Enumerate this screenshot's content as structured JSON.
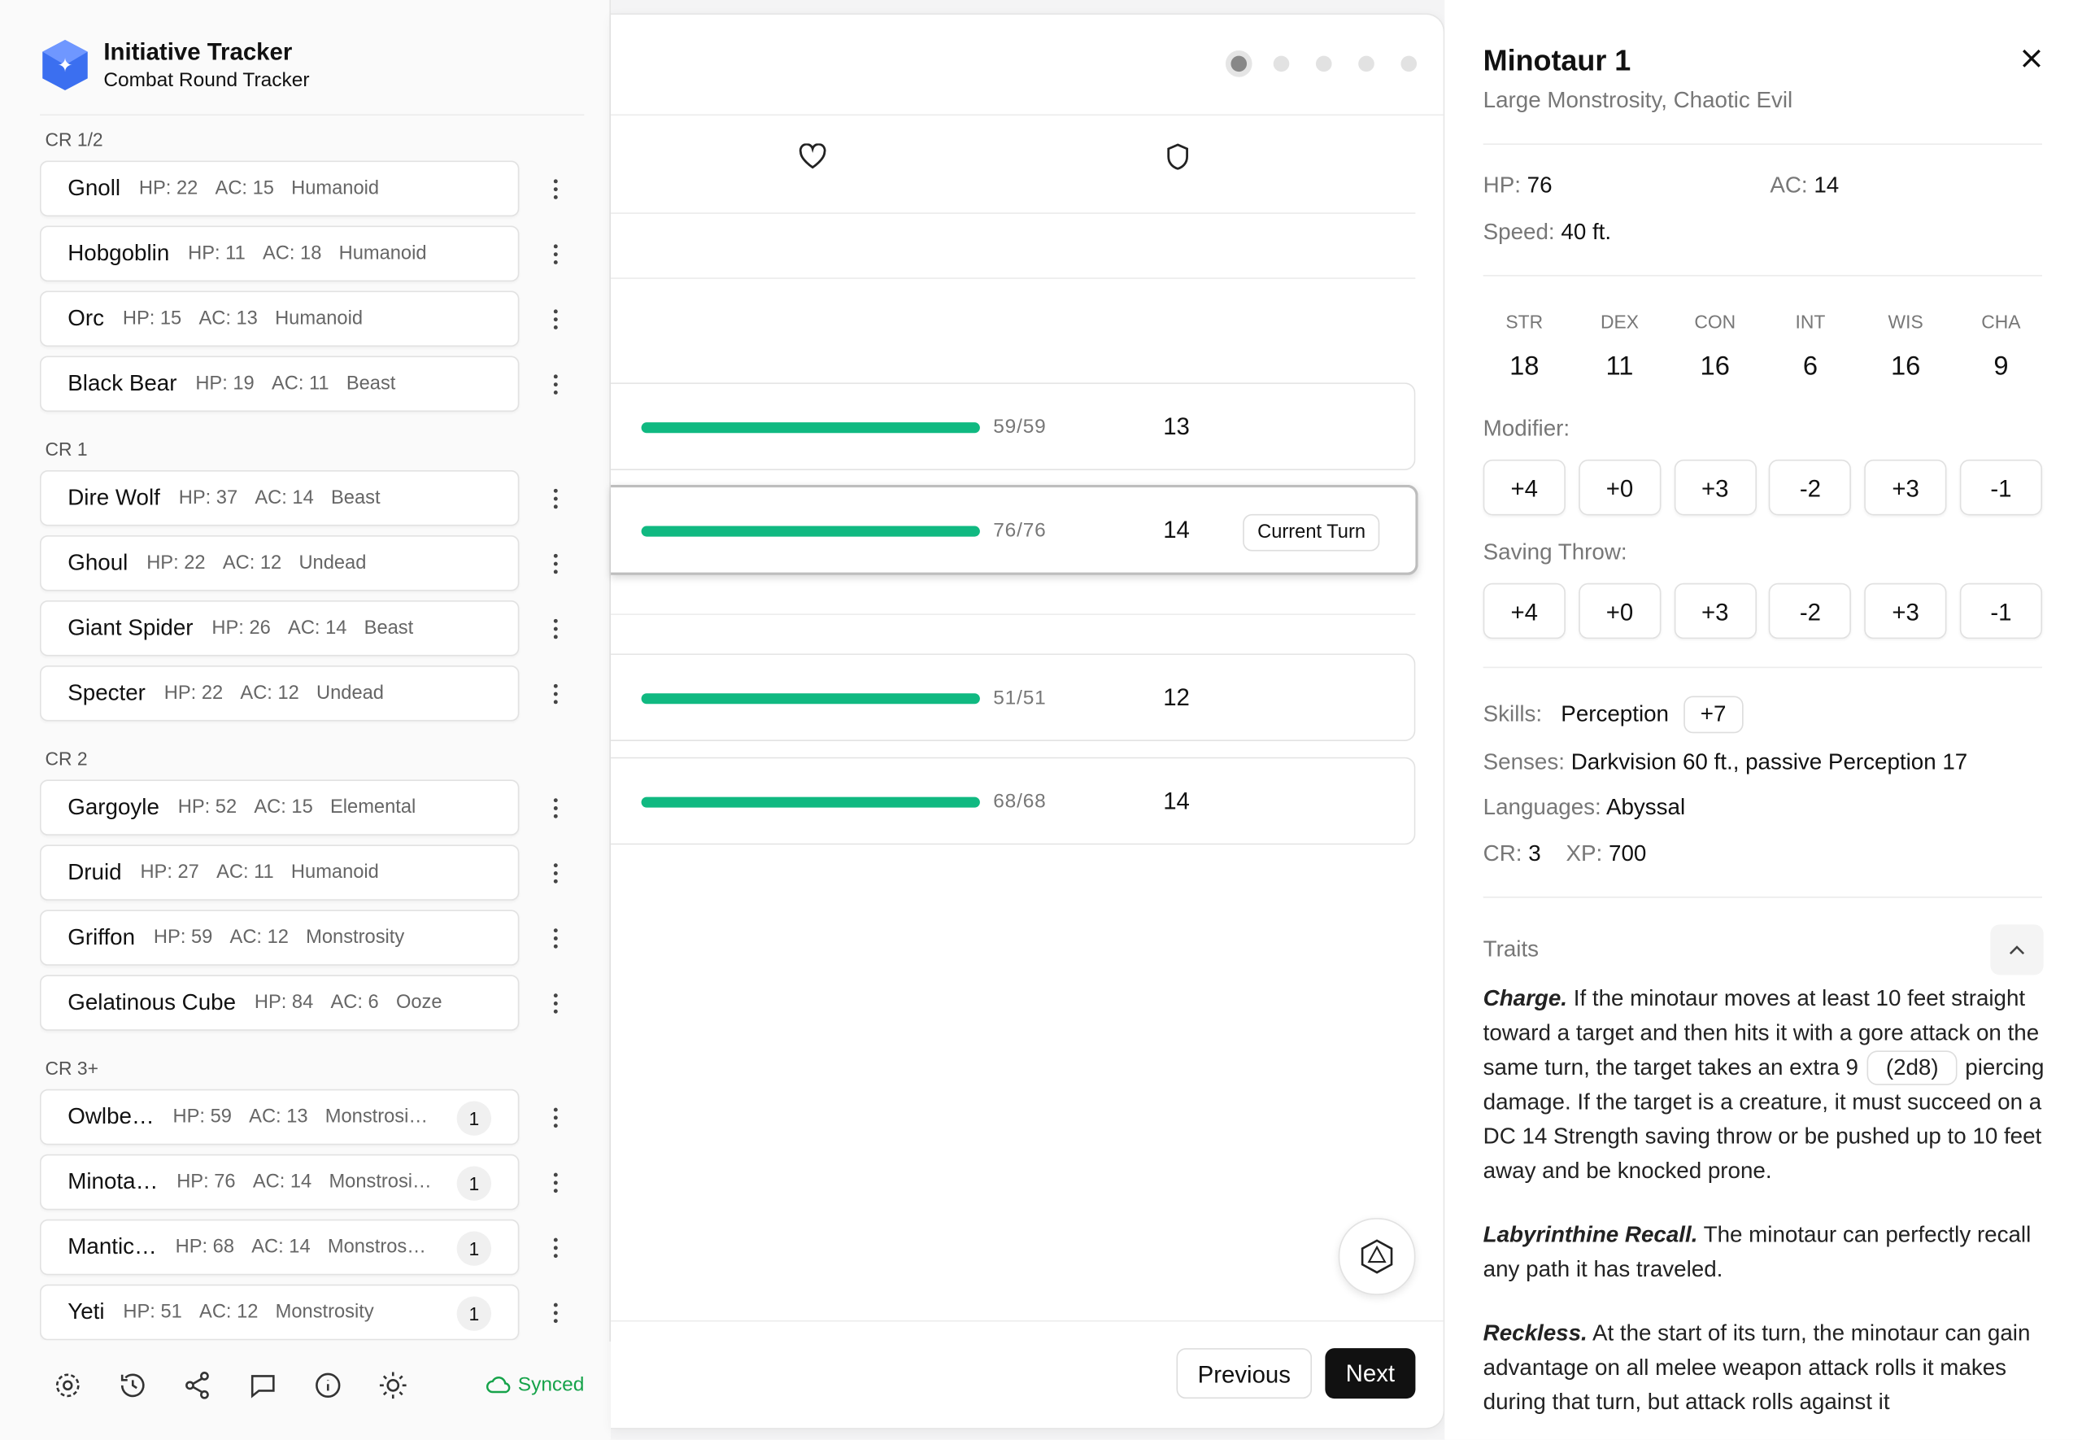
{
  "sidebar": {
    "title": "Initiative Tracker",
    "subtitle": "Combat Round Tracker",
    "status": "Synced",
    "groups": [
      {
        "label": "CR 1/2",
        "monsters": [
          {
            "name": "Gnoll",
            "hp": "HP: 22",
            "ac": "AC: 15",
            "type": "Humanoid"
          },
          {
            "name": "Hobgoblin",
            "hp": "HP: 11",
            "ac": "AC: 18",
            "type": "Humanoid"
          },
          {
            "name": "Orc",
            "hp": "HP: 15",
            "ac": "AC: 13",
            "type": "Humanoid"
          },
          {
            "name": "Black Bear",
            "hp": "HP: 19",
            "ac": "AC: 11",
            "type": "Beast"
          }
        ]
      },
      {
        "label": "CR 1",
        "monsters": [
          {
            "name": "Dire Wolf",
            "hp": "HP: 37",
            "ac": "AC: 14",
            "type": "Beast"
          },
          {
            "name": "Ghoul",
            "hp": "HP: 22",
            "ac": "AC: 12",
            "type": "Undead"
          },
          {
            "name": "Giant Spider",
            "hp": "HP: 26",
            "ac": "AC: 14",
            "type": "Beast"
          },
          {
            "name": "Specter",
            "hp": "HP: 22",
            "ac": "AC: 12",
            "type": "Undead"
          }
        ]
      },
      {
        "label": "CR 2",
        "monsters": [
          {
            "name": "Gargoyle",
            "hp": "HP: 52",
            "ac": "AC: 15",
            "type": "Elemental"
          },
          {
            "name": "Druid",
            "hp": "HP: 27",
            "ac": "AC: 11",
            "type": "Humanoid"
          },
          {
            "name": "Griffon",
            "hp": "HP: 59",
            "ac": "AC: 12",
            "type": "Monstrosity"
          },
          {
            "name": "Gelatinous Cube",
            "hp": "HP: 84",
            "ac": "AC: 6",
            "type": "Ooze"
          }
        ]
      },
      {
        "label": "CR 3+",
        "monsters": [
          {
            "name": "Owlbe…",
            "hp": "HP: 59",
            "ac": "AC: 13",
            "type": "Monstrosi…",
            "count": "1"
          },
          {
            "name": "Minota…",
            "hp": "HP: 76",
            "ac": "AC: 14",
            "type": "Monstrosi…",
            "count": "1"
          },
          {
            "name": "Mantic…",
            "hp": "HP: 68",
            "ac": "AC: 14",
            "type": "Monstros…",
            "count": "1"
          },
          {
            "name": "Yeti",
            "hp": "HP: 51",
            "ac": "AC: 12",
            "type": "Monstrosity",
            "count": "1"
          }
        ]
      }
    ]
  },
  "tracker": {
    "rows": [
      {
        "hp": "59/59",
        "ac": "13"
      },
      {
        "hp": "76/76",
        "ac": "14",
        "badge": "Current Turn"
      },
      {
        "hp": "51/51",
        "ac": "12"
      },
      {
        "hp": "68/68",
        "ac": "14"
      }
    ],
    "previous": "Previous",
    "next": "Next"
  },
  "detail": {
    "name": "Minotaur 1",
    "meta": "Large Monstrosity, Chaotic Evil",
    "stats": [
      {
        "label": "HP:",
        "value": "76"
      },
      {
        "label": "AC:",
        "value": "14"
      },
      {
        "label": "Speed:",
        "value": "40 ft."
      }
    ],
    "abilities": [
      {
        "label": "STR",
        "score": "18",
        "modifier": "+4",
        "save": "+4"
      },
      {
        "label": "DEX",
        "score": "11",
        "modifier": "+0",
        "save": "+0"
      },
      {
        "label": "CON",
        "score": "16",
        "modifier": "+3",
        "save": "+3"
      },
      {
        "label": "INT",
        "score": "6",
        "modifier": "-2",
        "save": "-2"
      },
      {
        "label": "WIS",
        "score": "16",
        "modifier": "+3",
        "save": "+3"
      },
      {
        "label": "CHA",
        "score": "9",
        "modifier": "-1",
        "save": "-1"
      }
    ],
    "modifier_label": "Modifier:",
    "save_label": "Saving Throw:",
    "skills": {
      "label": "Skills:",
      "name": "Perception",
      "bonus": "+7"
    },
    "senses": {
      "label": "Senses:",
      "value": "Darkvision 60 ft., passive Perception 17"
    },
    "languages": {
      "label": "Languages:",
      "value": "Abyssal"
    },
    "cr": {
      "label": "CR:",
      "value": "3"
    },
    "xp": {
      "label": "XP:",
      "value": "700"
    },
    "traits_title": "Traits",
    "traits": [
      {
        "name": "Charge.",
        "text": "If the minotaur moves at least 10 feet straight toward a target and then hits it with a gore attack on the same turn, the target takes an extra 9",
        "dice": "(2d8)",
        "after": "piercing damage. If the target is a creature, it must succeed on a DC 14 Strength saving throw or be pushed up to 10 feet away and be knocked prone."
      },
      {
        "name": "Labyrinthine Recall.",
        "text": "The minotaur can perfectly recall any path it has traveled."
      },
      {
        "name": "Reckless.",
        "text": "At the start of its turn, the minotaur can gain advantage on all melee weapon attack rolls it makes during that turn, but attack rolls against it"
      }
    ]
  }
}
